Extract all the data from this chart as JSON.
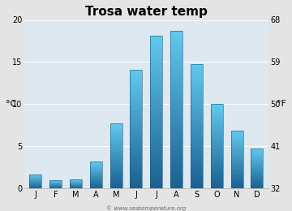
{
  "title": "Trosa water temp",
  "months": [
    "J",
    "F",
    "M",
    "A",
    "M",
    "J",
    "J",
    "A",
    "S",
    "O",
    "N",
    "D"
  ],
  "values_c": [
    1.7,
    1.0,
    1.1,
    3.2,
    7.7,
    14.1,
    18.1,
    18.7,
    14.8,
    10.0,
    6.9,
    4.8
  ],
  "ylabel_left": "°C",
  "ylabel_right": "°F",
  "yticks_c": [
    0,
    5,
    10,
    15,
    20
  ],
  "yticks_f": [
    32,
    41,
    50,
    59,
    68
  ],
  "ylim_c": [
    0,
    20
  ],
  "bar_color_top": "#62c8ec",
  "bar_color_bottom": "#1a6090",
  "background_color": "#e4e4e4",
  "plot_bg_color": "#dde8f0",
  "watermark": "© www.seatemperature.org",
  "title_fontsize": 11,
  "tick_fontsize": 7,
  "label_fontsize": 8
}
